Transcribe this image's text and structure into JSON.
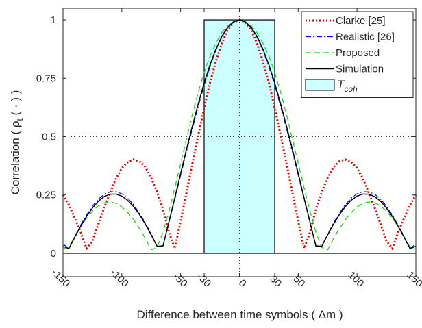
{
  "chart_data": {
    "type": "line",
    "xlabel": "Difference between time symbols  ( Δm )",
    "ylabel_parts": [
      "Correlation ( ρ",
      "t",
      " ( · ) )"
    ],
    "x": [
      -150,
      -145,
      -140,
      -135,
      -130,
      -125,
      -120,
      -115,
      -110,
      -105,
      -100,
      -95,
      -90,
      -85,
      -80,
      -75,
      -70,
      -65,
      -60,
      -55,
      -50,
      -45,
      -40,
      -35,
      -30,
      -25,
      -20,
      -15,
      -10,
      -5,
      0,
      5,
      10,
      15,
      20,
      25,
      30,
      35,
      40,
      45,
      50,
      55,
      60,
      65,
      70,
      75,
      80,
      85,
      90,
      95,
      100,
      105,
      110,
      115,
      120,
      125,
      130,
      135,
      140,
      145,
      150
    ],
    "series": [
      {
        "name": "Clarke [25]",
        "color": "#e60000",
        "style": "dotted",
        "values": [
          0.25,
          0.207,
          0.151,
          0.091,
          0.021,
          0.053,
          0.125,
          0.195,
          0.259,
          0.32,
          0.365,
          0.391,
          0.402,
          0.394,
          0.37,
          0.323,
          0.262,
          0.189,
          0.09,
          0.021,
          0.137,
          0.26,
          0.385,
          0.506,
          0.623,
          0.731,
          0.822,
          0.899,
          0.955,
          0.989,
          1,
          0.989,
          0.955,
          0.899,
          0.822,
          0.731,
          0.623,
          0.506,
          0.385,
          0.26,
          0.137,
          0.021,
          0.09,
          0.189,
          0.262,
          0.323,
          0.37,
          0.394,
          0.402,
          0.391,
          0.365,
          0.32,
          0.259,
          0.195,
          0.125,
          0.053,
          0.021,
          0.091,
          0.151,
          0.207,
          0.25
        ]
      },
      {
        "name": "Realistic [26]",
        "color": "#0000ff",
        "style": "dashdot",
        "values": [
          0.04,
          0.021,
          0.072,
          0.121,
          0.164,
          0.202,
          0.232,
          0.253,
          0.263,
          0.264,
          0.255,
          0.236,
          0.208,
          0.172,
          0.13,
          0.082,
          0.031,
          0.03,
          0.13,
          0.23,
          0.335,
          0.435,
          0.535,
          0.63,
          0.72,
          0.8,
          0.87,
          0.925,
          0.965,
          0.99,
          1,
          0.99,
          0.965,
          0.925,
          0.87,
          0.8,
          0.72,
          0.63,
          0.535,
          0.435,
          0.335,
          0.23,
          0.13,
          0.03,
          0.031,
          0.082,
          0.13,
          0.172,
          0.208,
          0.236,
          0.255,
          0.264,
          0.263,
          0.253,
          0.232,
          0.202,
          0.164,
          0.121,
          0.072,
          0.021,
          0.04
        ]
      },
      {
        "name": "Proposed",
        "color": "#00dd00",
        "style": "dashed",
        "values": [
          0.018,
          0.028,
          0.072,
          0.114,
          0.15,
          0.181,
          0.203,
          0.216,
          0.22,
          0.214,
          0.199,
          0.175,
          0.144,
          0.106,
          0.064,
          0.015,
          0.025,
          0.09,
          0.18,
          0.28,
          0.385,
          0.49,
          0.595,
          0.69,
          0.775,
          0.845,
          0.9,
          0.945,
          0.975,
          0.99,
          1,
          0.99,
          0.975,
          0.945,
          0.9,
          0.845,
          0.775,
          0.69,
          0.595,
          0.49,
          0.385,
          0.28,
          0.18,
          0.09,
          0.025,
          0.015,
          0.064,
          0.106,
          0.144,
          0.175,
          0.199,
          0.214,
          0.22,
          0.216,
          0.203,
          0.181,
          0.15,
          0.114,
          0.072,
          0.028,
          0.018
        ]
      },
      {
        "name": "Simulation",
        "color": "#000000",
        "style": "solid",
        "values": [
          0.03,
          0.02,
          0.069,
          0.116,
          0.158,
          0.194,
          0.223,
          0.243,
          0.253,
          0.254,
          0.245,
          0.227,
          0.2,
          0.166,
          0.125,
          0.079,
          0.03,
          0.032,
          0.134,
          0.237,
          0.342,
          0.446,
          0.546,
          0.641,
          0.73,
          0.808,
          0.875,
          0.929,
          0.968,
          0.992,
          1,
          0.992,
          0.968,
          0.929,
          0.875,
          0.808,
          0.73,
          0.641,
          0.546,
          0.446,
          0.342,
          0.237,
          0.134,
          0.032,
          0.03,
          0.079,
          0.125,
          0.166,
          0.2,
          0.227,
          0.245,
          0.254,
          0.253,
          0.243,
          0.223,
          0.194,
          0.158,
          0.116,
          0.069,
          0.02,
          0.03
        ]
      }
    ],
    "region": {
      "name": "T",
      "name_subscript": "coh",
      "xmin": -30,
      "xmax": 30,
      "ymin": 0,
      "ymax": 1,
      "color": "#ccffff"
    },
    "hline_dotted": 0.5,
    "vline_dotted": 0,
    "baseline": 0,
    "xlim": [
      -150,
      150
    ],
    "ylim": [
      -0.1,
      1.05
    ],
    "xticks": [
      -150,
      -100,
      -50,
      -30,
      0,
      30,
      50,
      100,
      150
    ],
    "yticks": [
      0,
      0.25,
      0.5,
      0.75,
      1
    ],
    "legend": "upper right"
  }
}
